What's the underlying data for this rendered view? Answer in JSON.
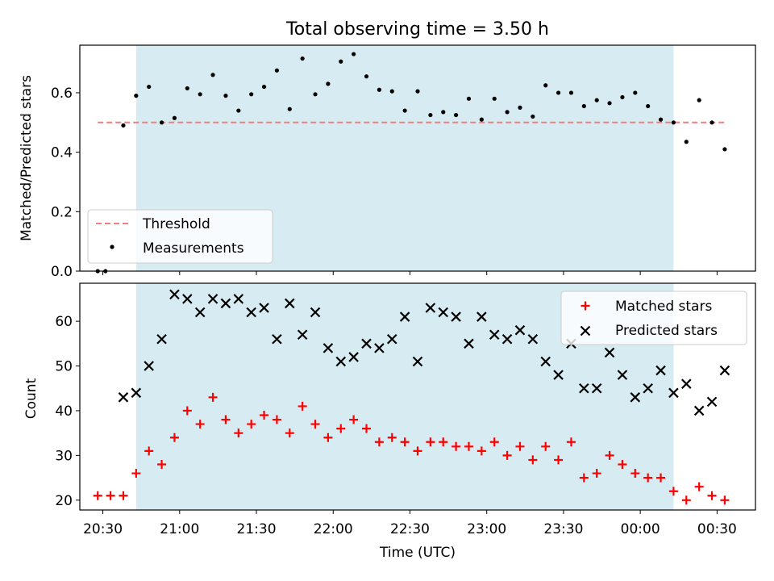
{
  "figure_title": "Total observing time = 3.50 h",
  "colors": {
    "shade": "#add8e6",
    "threshold": "#f08080",
    "measurement": "#000000",
    "matched": "#ff0000",
    "predicted": "#000000"
  },
  "chart_data": [
    {
      "type": "scatter",
      "title": "Total observing time = 3.50 h",
      "xlabel": "",
      "ylabel": "Matched/Predicted stars",
      "ylim": [
        0,
        0.76
      ],
      "yticks": [
        0.0,
        0.2,
        0.4,
        0.6
      ],
      "ytick_labels": [
        "0.0",
        "0.2",
        "0.4",
        "0.6"
      ],
      "xlim": [
        "20:21",
        "00:45"
      ],
      "xticks": [
        "20:30",
        "21:00",
        "21:30",
        "22:00",
        "22:30",
        "23:00",
        "23:30",
        "00:00",
        "00:30"
      ],
      "xtick_labels_shown": false,
      "shaded_span": [
        "20:43",
        "00:13"
      ],
      "threshold": {
        "name": "Threshold",
        "value": 0.5,
        "x_range": [
          "20:28",
          "00:33"
        ]
      },
      "legend": {
        "placement": "lower-left",
        "entries": [
          "Threshold",
          "Measurements"
        ]
      },
      "grid": false,
      "series": [
        {
          "name": "Measurements",
          "x": [
            "20:28",
            "20:31",
            "20:38",
            "20:43",
            "20:48",
            "20:53",
            "20:58",
            "21:03",
            "21:08",
            "21:13",
            "21:18",
            "21:23",
            "21:28",
            "21:33",
            "21:38",
            "21:43",
            "21:48",
            "21:53",
            "21:58",
            "22:03",
            "22:08",
            "22:13",
            "22:18",
            "22:23",
            "22:28",
            "22:33",
            "22:38",
            "22:43",
            "22:48",
            "22:53",
            "22:58",
            "23:03",
            "23:08",
            "23:13",
            "23:18",
            "23:23",
            "23:28",
            "23:33",
            "23:38",
            "23:43",
            "23:48",
            "23:53",
            "23:58",
            "00:03",
            "00:08",
            "00:13",
            "00:18",
            "00:23",
            "00:28",
            "00:33"
          ],
          "values": [
            0.0,
            0.0,
            0.49,
            0.59,
            0.62,
            0.5,
            0.515,
            0.615,
            0.595,
            0.66,
            0.59,
            0.54,
            0.595,
            0.62,
            0.675,
            0.545,
            0.715,
            0.595,
            0.63,
            0.705,
            0.73,
            0.655,
            0.61,
            0.605,
            0.54,
            0.605,
            0.525,
            0.535,
            0.525,
            0.58,
            0.51,
            0.58,
            0.535,
            0.55,
            0.52,
            0.625,
            0.6,
            0.6,
            0.555,
            0.575,
            0.565,
            0.585,
            0.6,
            0.555,
            0.51,
            0.5,
            0.435,
            0.575,
            0.5,
            0.41
          ]
        }
      ]
    },
    {
      "type": "scatter",
      "title": "",
      "xlabel": "Time (UTC)",
      "ylabel": "Count",
      "ylim": [
        17.8,
        68.5
      ],
      "yticks": [
        20,
        30,
        40,
        50,
        60
      ],
      "ytick_labels": [
        "20",
        "30",
        "40",
        "50",
        "60"
      ],
      "xlim": [
        "20:21",
        "00:45"
      ],
      "xticks": [
        "20:30",
        "21:00",
        "21:30",
        "22:00",
        "22:30",
        "23:00",
        "23:30",
        "00:00",
        "00:30"
      ],
      "xtick_labels": [
        "20:30",
        "21:00",
        "21:30",
        "22:00",
        "22:30",
        "23:00",
        "23:30",
        "00:00",
        "00:30"
      ],
      "shaded_span": [
        "20:43",
        "00:13"
      ],
      "legend": {
        "placement": "upper-right",
        "entries": [
          "Matched stars",
          "Predicted stars"
        ]
      },
      "grid": false,
      "series": [
        {
          "name": "Matched stars",
          "marker": "plus",
          "x": [
            "20:28",
            "20:33",
            "20:38",
            "20:43",
            "20:48",
            "20:53",
            "20:58",
            "21:03",
            "21:08",
            "21:13",
            "21:18",
            "21:23",
            "21:28",
            "21:33",
            "21:38",
            "21:43",
            "21:48",
            "21:53",
            "21:58",
            "22:03",
            "22:08",
            "22:13",
            "22:18",
            "22:23",
            "22:28",
            "22:33",
            "22:38",
            "22:43",
            "22:48",
            "22:53",
            "22:58",
            "23:03",
            "23:08",
            "23:13",
            "23:18",
            "23:23",
            "23:28",
            "23:33",
            "23:38",
            "23:43",
            "23:48",
            "23:53",
            "23:58",
            "00:03",
            "00:08",
            "00:13",
            "00:18",
            "00:23",
            "00:28",
            "00:33"
          ],
          "values": [
            21,
            21,
            21,
            26,
            31,
            28,
            34,
            40,
            37,
            43,
            38,
            35,
            37,
            39,
            38,
            35,
            41,
            37,
            34,
            36,
            38,
            36,
            33,
            34,
            33,
            31,
            33,
            33,
            32,
            32,
            31,
            33,
            30,
            32,
            29,
            32,
            29,
            33,
            25,
            26,
            30,
            28,
            26,
            25,
            25,
            22,
            20,
            23,
            21,
            20
          ]
        },
        {
          "name": "Predicted stars",
          "marker": "x",
          "x": [
            "20:38",
            "20:43",
            "20:48",
            "20:53",
            "20:58",
            "21:03",
            "21:08",
            "21:13",
            "21:18",
            "21:23",
            "21:28",
            "21:33",
            "21:38",
            "21:43",
            "21:48",
            "21:53",
            "21:58",
            "22:03",
            "22:08",
            "22:13",
            "22:18",
            "22:23",
            "22:28",
            "22:33",
            "22:38",
            "22:43",
            "22:48",
            "22:53",
            "22:58",
            "23:03",
            "23:08",
            "23:13",
            "23:18",
            "23:23",
            "23:28",
            "23:33",
            "23:38",
            "23:43",
            "23:48",
            "23:53",
            "23:58",
            "00:03",
            "00:08",
            "00:13",
            "00:18",
            "00:23",
            "00:28",
            "00:33"
          ],
          "values": [
            43,
            44,
            50,
            56,
            66,
            65,
            62,
            65,
            64,
            65,
            62,
            63,
            56,
            64,
            57,
            62,
            54,
            51,
            52,
            55,
            54,
            56,
            61,
            51,
            63,
            62,
            61,
            55,
            61,
            57,
            56,
            58,
            56,
            51,
            48,
            55,
            45,
            45,
            53,
            48,
            43,
            45,
            49,
            44,
            46,
            40,
            42,
            49
          ]
        }
      ]
    }
  ]
}
